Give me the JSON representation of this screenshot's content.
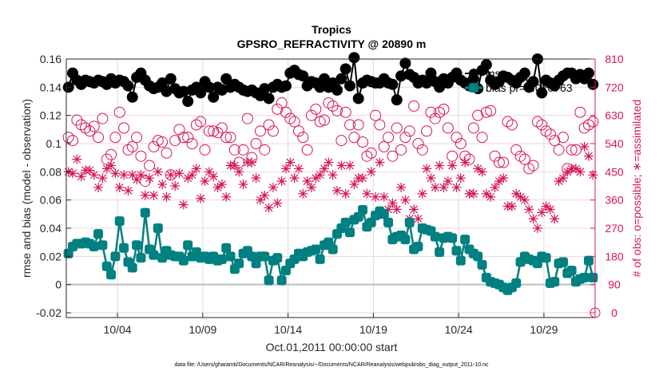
{
  "chart_data": {
    "type": "line",
    "title": "Tropics",
    "subtitle": "GPSRO_REFRACTIVITY @ 20890 m",
    "xlabel": "Oct.01,2011 00:00:00 start",
    "ylabel": "rmse and bias (model - observation)",
    "y2label": "# of obs: o=possible; ∗=assimilated",
    "footnote": "data file: /Users/gharamti/Documents/NCAR/Reanalysis/~/Documents/NCAR/Reanalysis/webpub/obs_diag_output_2011-10.nc",
    "xlim_days": [
      0,
      31
    ],
    "ylim": [
      -0.02,
      0.16
    ],
    "y2lim": [
      0,
      810
    ],
    "grid": true,
    "legend_position": "top-right",
    "xticks": [
      {
        "day": 3,
        "label": "10/04"
      },
      {
        "day": 8,
        "label": "10/09"
      },
      {
        "day": 13,
        "label": "10/14"
      },
      {
        "day": 18,
        "label": "10/19"
      },
      {
        "day": 23,
        "label": "10/24"
      },
      {
        "day": 28,
        "label": "10/29"
      }
    ],
    "yticks": [
      {
        "value": 0.16,
        "label": "0.16"
      },
      {
        "value": 0.14,
        "label": "0.14"
      },
      {
        "value": 0.12,
        "label": "0.12"
      },
      {
        "value": 0.1,
        "label": "0.1"
      },
      {
        "value": 0.08,
        "label": "0.08"
      },
      {
        "value": 0.06,
        "label": "0.06"
      },
      {
        "value": 0.04,
        "label": "0.04"
      },
      {
        "value": 0.02,
        "label": "0.02"
      },
      {
        "value": 0,
        "label": "0"
      },
      {
        "value": -0.02,
        "label": "-0.02"
      }
    ],
    "y2ticks": [
      {
        "value": 810,
        "label": "810"
      },
      {
        "value": 720,
        "label": "720"
      },
      {
        "value": 630,
        "label": "630"
      },
      {
        "value": 540,
        "label": "540"
      },
      {
        "value": 450,
        "label": "450"
      },
      {
        "value": 360,
        "label": "360"
      },
      {
        "value": 270,
        "label": "270"
      },
      {
        "value": 180,
        "label": "180"
      },
      {
        "value": 90,
        "label": "90"
      },
      {
        "value": 0,
        "label": "0"
      }
    ],
    "x_step_days": 0.25,
    "x_start_day": 0.125,
    "series": [
      {
        "name": "mse",
        "legend_label": "mse",
        "color": "#000000",
        "marker": "circle-filled",
        "axis": "left",
        "values": [
          0.14,
          0.15,
          0.145,
          0.142,
          0.145,
          0.144,
          0.143,
          0.145,
          0.144,
          0.142,
          0.146,
          0.143,
          0.145,
          0.144,
          0.141,
          0.133,
          0.147,
          0.15,
          0.145,
          0.141,
          0.139,
          0.14,
          0.143,
          0.137,
          0.146,
          0.139,
          0.136,
          0.137,
          0.13,
          0.138,
          0.14,
          0.136,
          0.144,
          0.14,
          0.133,
          0.14,
          0.138,
          0.146,
          0.14,
          0.142,
          0.14,
          0.138,
          0.137,
          0.138,
          0.136,
          0.134,
          0.139,
          0.132,
          0.14,
          0.142,
          0.14,
          0.141,
          0.15,
          0.152,
          0.149,
          0.148,
          0.141,
          0.144,
          0.143,
          0.14,
          0.146,
          0.14,
          0.143,
          0.138,
          0.146,
          0.153,
          0.141,
          0.161,
          0.132,
          0.143,
          0.145,
          0.144,
          0.143,
          0.143,
          0.146,
          0.143,
          0.142,
          0.131,
          0.148,
          0.157,
          0.149,
          0.147,
          0.143,
          0.145,
          0.143,
          0.15,
          0.144,
          0.14,
          0.146,
          0.143,
          0.147,
          0.15,
          0.145,
          0.143,
          0.141,
          0.146,
          0.139,
          0.152,
          0.156,
          0.145,
          0.142,
          0.144,
          0.148,
          0.147,
          0.145,
          0.143,
          0.147,
          0.15,
          0.14,
          0.144,
          0.16,
          0.136,
          0.145,
          0.143,
          0.141,
          0.145,
          0.148,
          0.15,
          0.15,
          0.146,
          0.149,
          0.146,
          0.15,
          0.142
        ]
      },
      {
        "name": "bias",
        "legend_label": "bias pr=0.020763",
        "color": "#008080",
        "marker": "square-filled",
        "axis": "left",
        "values": [
          0.022,
          0.027,
          0.029,
          0.029,
          0.03,
          0.029,
          0.027,
          0.036,
          0.028,
          0.013,
          0.007,
          0.02,
          0.045,
          0.026,
          0.016,
          0.012,
          0.028,
          0.019,
          0.051,
          0.025,
          0.021,
          0.04,
          0.019,
          0.024,
          0.021,
          0.02,
          0.02,
          0.017,
          0.028,
          0.02,
          0.023,
          0.019,
          0.02,
          0.018,
          0.02,
          0.017,
          0.018,
          0.026,
          0.02,
          0.011,
          0.015,
          0.022,
          0.024,
          0.02,
          0.015,
          0.02,
          0.02,
          0.003,
          0.017,
          0.019,
          0.003,
          0.01,
          0.015,
          0.018,
          0.022,
          0.02,
          0.023,
          0.024,
          0.025,
          0.018,
          0.028,
          0.03,
          0.025,
          0.036,
          0.04,
          0.044,
          0.037,
          0.046,
          0.048,
          0.053,
          0.041,
          0.044,
          0.049,
          0.052,
          0.05,
          0.044,
          0.032,
          0.034,
          0.035,
          0.032,
          0.044,
          0.025,
          0.027,
          0.04,
          0.039,
          0.038,
          0.034,
          0.023,
          0.033,
          0.034,
          0.033,
          0.024,
          0.017,
          0.032,
          0.025,
          0.022,
          0.02,
          0.014,
          0.005,
          0.002,
          0.001,
          0.0,
          -0.002,
          -0.004,
          -0.002,
          0.001,
          0.016,
          0.02,
          0.018,
          0.017,
          0.015,
          0.02,
          0.019,
          0.001,
          0.002,
          0.015,
          0.016,
          0.008,
          0.01,
          0.002,
          0.004,
          0.005,
          0.017,
          0.005
        ]
      },
      {
        "name": "possible",
        "legend_label": "",
        "color": "#d6145a",
        "marker": "circle-open",
        "axis": "right",
        "values": [
          560,
          550,
          615,
          600,
          590,
          580,
          595,
          560,
          620,
          490,
          505,
          560,
          640,
          590,
          520,
          530,
          560,
          500,
          420,
          470,
          530,
          550,
          545,
          510,
          440,
          550,
          585,
          560,
          560,
          540,
          600,
          610,
          520,
          580,
          580,
          575,
          590,
          560,
          560,
          520,
          480,
          520,
          620,
          495,
          540,
          580,
          520,
          600,
          580,
          650,
          670,
          640,
          620,
          610,
          580,
          560,
          520,
          630,
          650,
          610,
          615,
          670,
          660,
          645,
          550,
          640,
          600,
          560,
          600,
          545,
          500,
          510,
          630,
          600,
          530,
          560,
          500,
          590,
          520,
          560,
          580,
          660,
          540,
          520,
          580,
          640,
          620,
          640,
          650,
          590,
          500,
          560,
          540,
          500,
          490,
          590,
          630,
          560,
          640,
          645,
          500,
          480,
          480,
          610,
          600,
          520,
          500,
          490,
          460,
          470,
          610,
          600,
          580,
          570,
          550,
          520,
          560,
          460,
          520,
          520,
          640,
          590,
          600,
          610
        ]
      },
      {
        "name": "assimilated",
        "legend_label": "",
        "color": "#d6145a",
        "marker": "asterisk",
        "axis": "right",
        "values": [
          450,
          445,
          490,
          435,
          455,
          455,
          440,
          400,
          430,
          460,
          470,
          445,
          400,
          440,
          390,
          440,
          425,
          440,
          375,
          430,
          375,
          450,
          410,
          370,
          440,
          405,
          445,
          345,
          430,
          440,
          460,
          365,
          420,
          450,
          435,
          400,
          410,
          370,
          470,
          470,
          450,
          410,
          480,
          480,
          430,
          360,
          375,
          335,
          400,
          350,
          420,
          460,
          480,
          430,
          460,
          380,
          420,
          400,
          430,
          440,
          460,
          480,
          440,
          390,
          470,
          380,
          470,
          410,
          430,
          430,
          380,
          450,
          370,
          480,
          370,
          330,
          350,
          330,
          400,
          360,
          300,
          330,
          300,
          380,
          460,
          430,
          400,
          470,
          400,
          420,
          470,
          400,
          430,
          480,
          380,
          380,
          460,
          450,
          380,
          370,
          400,
          420,
          430,
          340,
          340,
          380,
          370,
          360,
          330,
          300,
          270,
          320,
          340,
          330,
          300,
          420,
          430,
          450,
          460,
          460,
          450,
          530,
          500,
          440
        ]
      }
    ]
  }
}
